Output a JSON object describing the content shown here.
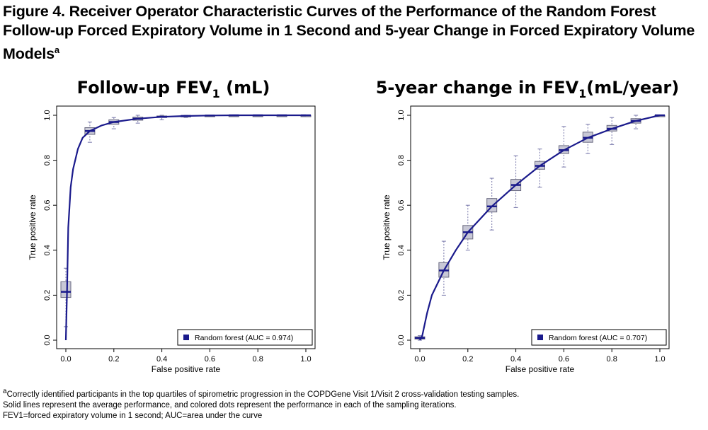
{
  "figure": {
    "title_text": "Figure 4. Receiver Operator Characteristic Curves of the Performance of the Random Forest Follow-up Forced Expiratory Volume in 1 Second and 5-year Change in Forced Expiratory Volume Models",
    "title_sup": "a",
    "footnote_1_sup": "a",
    "footnote_1": "Correctly identified participants in the top quartiles of spirometric progression in the COPDGene Visit 1/Visit 2 cross-validation testing samples.",
    "footnote_2": "Solid lines represent the average performance, and colored dots represent the performance in each of the sampling iterations.",
    "footnote_3": "FEV1=forced expiratory volume in 1 second; AUC=area under the curve"
  },
  "chart_data": [
    {
      "type": "line",
      "title": "Follow-up FEV1 (mL)",
      "title_main": "Follow-up FEV",
      "title_sub": "1",
      "title_tail": " (mL)",
      "xlabel": "False positive rate",
      "ylabel": "True positive rate",
      "xlim": [
        0,
        1
      ],
      "ylim": [
        0,
        1
      ],
      "xticks": [
        "0.0",
        "0.2",
        "0.4",
        "0.6",
        "0.8",
        "1.0"
      ],
      "yticks": [
        "0.0",
        "0.2",
        "0.4",
        "0.6",
        "0.8",
        "1.0"
      ],
      "legend": "Random forest (AUC = 0.974)",
      "legend_position": "bottom-right",
      "series": [
        {
          "name": "Random forest (AUC = 0.974)",
          "color": "#1a1a8c",
          "x": [
            0,
            0.005,
            0.01,
            0.02,
            0.03,
            0.05,
            0.07,
            0.1,
            0.15,
            0.2,
            0.3,
            0.4,
            0.5,
            0.6,
            0.7,
            0.8,
            0.9,
            1.0
          ],
          "y": [
            0.0,
            0.22,
            0.5,
            0.68,
            0.76,
            0.85,
            0.9,
            0.93,
            0.955,
            0.97,
            0.985,
            0.993,
            0.997,
            0.999,
            1.0,
            1.0,
            1.0,
            1.0
          ]
        }
      ],
      "boxes": [
        {
          "x": 0.0,
          "median": 0.215,
          "q1": 0.19,
          "q3": 0.26,
          "min": 0.06,
          "max": 0.32
        },
        {
          "x": 0.1,
          "median": 0.93,
          "q1": 0.915,
          "q3": 0.945,
          "min": 0.88,
          "max": 0.97
        },
        {
          "x": 0.2,
          "median": 0.97,
          "q1": 0.96,
          "q3": 0.98,
          "min": 0.94,
          "max": 0.99
        },
        {
          "x": 0.3,
          "median": 0.985,
          "q1": 0.978,
          "q3": 0.992,
          "min": 0.965,
          "max": 1.0
        },
        {
          "x": 0.4,
          "median": 0.993,
          "q1": 0.99,
          "q3": 0.997,
          "min": 0.98,
          "max": 1.0
        },
        {
          "x": 0.5,
          "median": 0.997,
          "q1": 0.995,
          "q3": 0.999,
          "min": 0.99,
          "max": 1.0
        },
        {
          "x": 0.6,
          "median": 0.999,
          "q1": 0.998,
          "q3": 1.0,
          "min": 0.995,
          "max": 1.0
        },
        {
          "x": 0.7,
          "median": 1.0,
          "q1": 0.999,
          "q3": 1.0,
          "min": 0.998,
          "max": 1.0
        },
        {
          "x": 0.8,
          "median": 1.0,
          "q1": 1.0,
          "q3": 1.0,
          "min": 1.0,
          "max": 1.0
        },
        {
          "x": 0.9,
          "median": 1.0,
          "q1": 1.0,
          "q3": 1.0,
          "min": 1.0,
          "max": 1.0
        },
        {
          "x": 1.0,
          "median": 1.0,
          "q1": 1.0,
          "q3": 1.0,
          "min": 1.0,
          "max": 1.0
        }
      ]
    },
    {
      "type": "line",
      "title": "5-year change in FEV1(mL/year)",
      "title_main": "5-year change in FEV",
      "title_sub": "1",
      "title_tail": "(mL/year)",
      "xlabel": "False positive rate",
      "ylabel": "True positive rate",
      "xlim": [
        0,
        1
      ],
      "ylim": [
        0,
        1
      ],
      "xticks": [
        "0.0",
        "0.2",
        "0.4",
        "0.6",
        "0.8",
        "1.0"
      ],
      "yticks": [
        "0.0",
        "0.2",
        "0.4",
        "0.6",
        "0.8",
        "1.0"
      ],
      "legend": "Random forest (AUC = 0.707)",
      "legend_position": "bottom-right",
      "series": [
        {
          "name": "Random forest (AUC = 0.707)",
          "color": "#1a1a8c",
          "x": [
            0,
            0.01,
            0.03,
            0.05,
            0.1,
            0.15,
            0.2,
            0.3,
            0.4,
            0.5,
            0.6,
            0.7,
            0.8,
            0.9,
            1.0
          ],
          "y": [
            0.0,
            0.02,
            0.12,
            0.2,
            0.31,
            0.4,
            0.48,
            0.595,
            0.69,
            0.775,
            0.845,
            0.9,
            0.94,
            0.975,
            1.0
          ]
        }
      ],
      "boxes": [
        {
          "x": 0.0,
          "median": 0.01,
          "q1": 0.005,
          "q3": 0.015,
          "min": 0.0,
          "max": 0.02
        },
        {
          "x": 0.1,
          "median": 0.31,
          "q1": 0.28,
          "q3": 0.345,
          "min": 0.2,
          "max": 0.44
        },
        {
          "x": 0.2,
          "median": 0.48,
          "q1": 0.45,
          "q3": 0.51,
          "min": 0.4,
          "max": 0.6
        },
        {
          "x": 0.3,
          "median": 0.595,
          "q1": 0.57,
          "q3": 0.63,
          "min": 0.49,
          "max": 0.72
        },
        {
          "x": 0.4,
          "median": 0.69,
          "q1": 0.665,
          "q3": 0.715,
          "min": 0.59,
          "max": 0.82
        },
        {
          "x": 0.5,
          "median": 0.775,
          "q1": 0.76,
          "q3": 0.795,
          "min": 0.68,
          "max": 0.85
        },
        {
          "x": 0.6,
          "median": 0.845,
          "q1": 0.83,
          "q3": 0.865,
          "min": 0.77,
          "max": 0.95
        },
        {
          "x": 0.7,
          "median": 0.9,
          "q1": 0.88,
          "q3": 0.925,
          "min": 0.83,
          "max": 0.96
        },
        {
          "x": 0.8,
          "median": 0.94,
          "q1": 0.93,
          "q3": 0.955,
          "min": 0.87,
          "max": 0.99
        },
        {
          "x": 0.9,
          "median": 0.975,
          "q1": 0.965,
          "q3": 0.985,
          "min": 0.94,
          "max": 1.0
        },
        {
          "x": 1.0,
          "median": 1.0,
          "q1": 1.0,
          "q3": 1.0,
          "min": 1.0,
          "max": 1.0
        }
      ]
    }
  ]
}
